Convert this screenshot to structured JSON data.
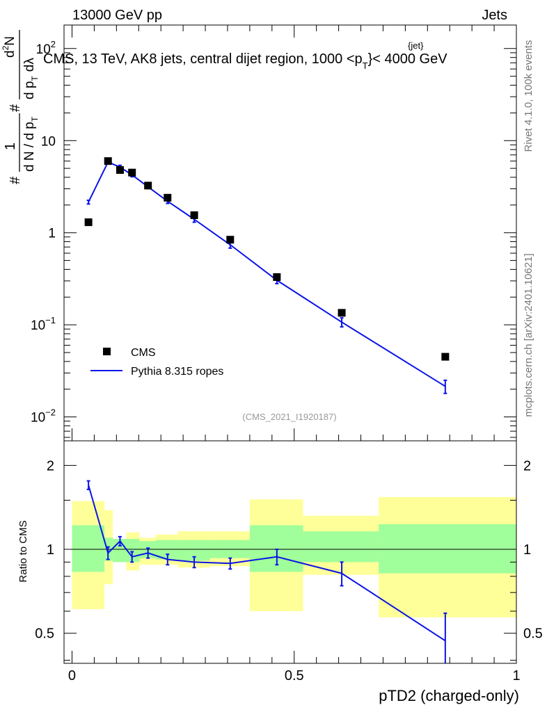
{
  "header": {
    "left": "13000 GeV pp",
    "right": "Jets"
  },
  "plot_title": {
    "main": "CMS, 13 TeV, AK8 jets, central dijet region, 1000 <p",
    "sub": "T",
    "sup": "{jet}",
    "tail": "}< 4000 GeV"
  },
  "side_labels": {
    "rivet": "Rivet 4.1.0,  100k events",
    "mcplots": "mcplots.cern.ch [arXiv:2401.10621]"
  },
  "ylabel_main": {
    "hash1": "#",
    "one": "1",
    "dN": "d N / d p",
    "T": "T",
    "hash2": "#",
    "d2N": "d",
    "sq": "2",
    "N": "N",
    "dp": "d p",
    "T2": "T",
    "dlambda": "dλ"
  },
  "analysis_id": "(CMS_2021_I1920187)",
  "legend": {
    "data": "CMS",
    "mc": "Pythia 8.315 ropes"
  },
  "colors": {
    "data": "#000000",
    "mc": "#0a14e6",
    "band_inner": "#a0ff9a",
    "band_outer": "#ffff9a"
  },
  "chart_data": [
    {
      "type": "scatter",
      "name": "main",
      "yscale": "log",
      "xlim": [
        -0.018,
        1.0
      ],
      "ylim": [
        0.0055,
        180
      ],
      "ytick_labels": [
        {
          "v": 0.01,
          "base": "10",
          "exp": "−2"
        },
        {
          "v": 0.1,
          "base": "10",
          "exp": "−1"
        },
        {
          "v": 1,
          "base": "1",
          "exp": ""
        },
        {
          "v": 10,
          "base": "10",
          "exp": ""
        },
        {
          "v": 100,
          "base": "10",
          "exp": "2"
        }
      ],
      "series": [
        {
          "name": "CMS",
          "x": [
            0.037,
            0.081,
            0.108,
            0.135,
            0.171,
            0.215,
            0.275,
            0.356,
            0.461,
            0.607,
            0.84
          ],
          "y": [
            1.3,
            6.0,
            4.8,
            4.5,
            3.25,
            2.4,
            1.55,
            0.84,
            0.33,
            0.135,
            0.045
          ]
        },
        {
          "name": "Pythia 8.315 ropes",
          "x": [
            0.037,
            0.081,
            0.108,
            0.135,
            0.171,
            0.215,
            0.275,
            0.356,
            0.461,
            0.607,
            0.84
          ],
          "y": [
            2.15,
            5.85,
            5.15,
            4.25,
            3.15,
            2.2,
            1.4,
            0.74,
            0.305,
            0.107,
            0.0215
          ],
          "yerr_lo": [
            0.1,
            0.15,
            0.25,
            0.2,
            0.12,
            0.12,
            0.1,
            0.06,
            0.025,
            0.012,
            0.0035
          ],
          "yerr_hi": [
            0.1,
            0.15,
            0.25,
            0.2,
            0.12,
            0.12,
            0.1,
            0.06,
            0.025,
            0.012,
            0.0035
          ]
        }
      ]
    },
    {
      "type": "line",
      "name": "ratio",
      "xlabel": "pTD2 (charged-only)",
      "ylabel": "Ratio to CMS",
      "yscale": "log",
      "xlim": [
        -0.018,
        1.0
      ],
      "ylim": [
        0.39,
        2.45
      ],
      "ytick_labels": [
        {
          "v": 0.5,
          "label": "0.5"
        },
        {
          "v": 1,
          "label": "1"
        },
        {
          "v": 2,
          "label": "2"
        }
      ],
      "xtick_labels": [
        {
          "v": 0,
          "label": "0"
        },
        {
          "v": 0.5,
          "label": "0.5"
        },
        {
          "v": 1,
          "label": "1"
        }
      ],
      "bands": {
        "bin_edges": [
          0.0,
          0.073,
          0.092,
          0.122,
          0.152,
          0.188,
          0.238,
          0.31,
          0.4,
          0.52,
          0.69,
          1.0
        ],
        "inner_lo": [
          0.83,
          0.91,
          0.9,
          0.9,
          0.93,
          0.92,
          0.91,
          0.93,
          0.83,
          0.9,
          0.82
        ],
        "inner_hi": [
          1.22,
          1.1,
          1.09,
          1.09,
          1.07,
          1.08,
          1.08,
          1.08,
          1.22,
          1.16,
          1.23
        ],
        "outer_lo": [
          0.61,
          0.75,
          0.9,
          0.84,
          0.88,
          0.88,
          0.86,
          0.87,
          0.6,
          0.81,
          0.57
        ],
        "outer_hi": [
          1.49,
          1.38,
          1.09,
          1.15,
          1.1,
          1.13,
          1.16,
          1.16,
          1.51,
          1.32,
          1.54
        ]
      },
      "series": [
        {
          "name": "Pythia 8.315 ropes / CMS",
          "x": [
            0.037,
            0.081,
            0.108,
            0.135,
            0.171,
            0.215,
            0.275,
            0.356,
            0.461,
            0.607,
            0.84
          ],
          "y": [
            1.7,
            0.97,
            1.07,
            0.94,
            0.97,
            0.92,
            0.9,
            0.89,
            0.94,
            0.82,
            0.47
          ],
          "yerr_lo": [
            0.06,
            0.05,
            0.04,
            0.04,
            0.04,
            0.04,
            0.04,
            0.04,
            0.06,
            0.08,
            0.09
          ],
          "yerr_hi": [
            0.06,
            0.05,
            0.04,
            0.04,
            0.04,
            0.04,
            0.04,
            0.04,
            0.06,
            0.08,
            0.12
          ]
        }
      ]
    }
  ]
}
